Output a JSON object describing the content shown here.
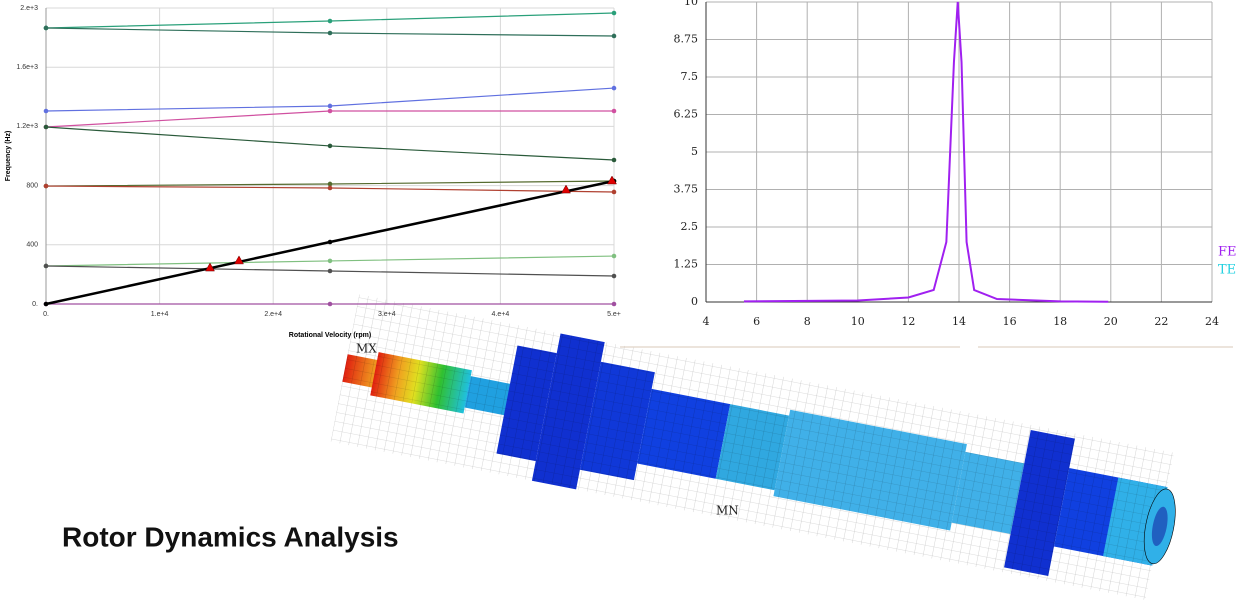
{
  "title": "Rotor Dynamics Analysis",
  "mesh_labels": {
    "max": "MX",
    "min": "MN"
  },
  "chart_data": [
    {
      "type": "line",
      "x_label": "Rotational Velocity (rpm)",
      "y_label": "Frequency (Hz)",
      "x": [
        0,
        25000,
        50000
      ],
      "xlim": [
        0,
        50000
      ],
      "ylim": [
        0,
        2000
      ],
      "grid": true,
      "xticks": [
        {
          "value": 0,
          "label": "0."
        },
        {
          "value": 10000,
          "label": "1.e+4"
        },
        {
          "value": 20000,
          "label": "2.e+4"
        },
        {
          "value": 30000,
          "label": "3.e+4"
        },
        {
          "value": 40000,
          "label": "4.e+4"
        },
        {
          "value": 50000,
          "label": "5.e+"
        }
      ],
      "yticks": [
        {
          "value": 0,
          "label": "0."
        },
        400,
        800,
        {
          "value": 1200,
          "label": "1.2e+3"
        },
        {
          "value": 1600,
          "label": "1.6e+3"
        },
        {
          "value": 2000,
          "label": "2.e+3"
        }
      ],
      "series": [
        {
          "color": "#2aa07a",
          "values": [
            1865,
            1912,
            1966
          ]
        },
        {
          "color": "#2f6f5a",
          "values": [
            1865,
            1831,
            1811
          ]
        },
        {
          "color": "#6070e0",
          "values": [
            1304,
            1338,
            1459
          ]
        },
        {
          "color": "#d050a0",
          "values": [
            1196,
            1304,
            1304
          ]
        },
        {
          "color": "#2a5a3a",
          "values": [
            1196,
            1068,
            973
          ]
        },
        {
          "color": "#556b2f",
          "values": [
            797,
            811,
            831
          ]
        },
        {
          "color": "#b04030",
          "values": [
            797,
            784,
            757
          ]
        },
        {
          "color": "#80c080",
          "values": [
            257,
            291,
            324
          ]
        },
        {
          "color": "#505050",
          "values": [
            257,
            223,
            189
          ]
        },
        {
          "color": "#a050a0",
          "values": [
            0,
            0,
            0
          ]
        },
        {
          "color": "#000000",
          "width": 2.5,
          "values": [
            0,
            419,
            831
          ]
        },
        {
          "color": "#e00000",
          "style": "markers",
          "x": [
            14437,
            16990,
            45775,
            49824
          ],
          "values": [
            243,
            291,
            770,
            831
          ]
        }
      ]
    },
    {
      "type": "line",
      "x": [
        5.5,
        10,
        12,
        13,
        13.5,
        13.8,
        13.95,
        14.1,
        14.3,
        14.6,
        15.5,
        18,
        19.9
      ],
      "xlim": [
        4,
        24
      ],
      "ylim": [
        0,
        10
      ],
      "grid": true,
      "xticks": [
        4,
        6,
        8,
        10,
        12,
        14,
        16,
        18,
        20,
        22,
        24
      ],
      "yticks": [
        0,
        1.25,
        2.5,
        3.75,
        5,
        6.25,
        7.5,
        8.75,
        10
      ],
      "series": [
        {
          "name": "FE",
          "color": "#a020f0",
          "width": 2,
          "values": [
            0.02,
            0.05,
            0.15,
            0.4,
            2,
            8,
            10,
            8,
            2,
            0.4,
            0.1,
            0.02,
            0.01
          ]
        },
        {
          "name": "TE",
          "color": "#20d0e0",
          "values": [
            null,
            null,
            null,
            null,
            null,
            null,
            null,
            null,
            null,
            null,
            null,
            null,
            null
          ]
        }
      ]
    }
  ]
}
